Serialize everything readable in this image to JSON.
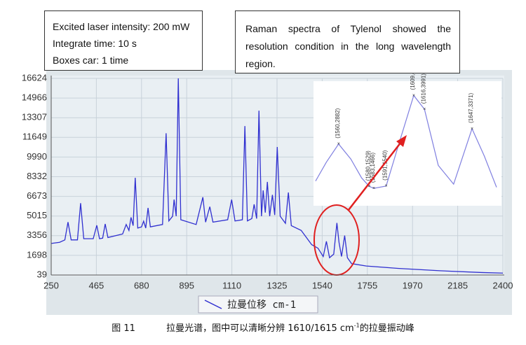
{
  "notes": [
    {
      "lines": [
        "Excited laser intensity: 200 mW",
        "Integrate time: 10 s",
        "Boxes car: 1 time"
      ]
    },
    {
      "lines": [
        "Raman spectra of Tylenol showed the",
        "resolution condition in the long wavelength",
        "region."
      ]
    }
  ],
  "caption": {
    "label": "图 11",
    "text_before": "拉曼光谱，图中可以清晰分辨 1610/1615 cm",
    "superscript": "-1",
    "text_after": "的拉曼振动峰"
  },
  "chart_data": [
    {
      "type": "line",
      "x": [
        250,
        290,
        315,
        330,
        345,
        375,
        390,
        405,
        450,
        467,
        480,
        495,
        507,
        520,
        590,
        607,
        620,
        630,
        640,
        650,
        662,
        680,
        690,
        700,
        711,
        722,
        780,
        797,
        810,
        828,
        835,
        845,
        855,
        867,
        940,
        972,
        985,
        1005,
        1020,
        1090,
        1109,
        1125,
        1160,
        1172,
        1184,
        1205,
        1216,
        1228,
        1239,
        1251,
        1259,
        1269,
        1279,
        1290,
        1303,
        1314,
        1326,
        1340,
        1365,
        1379,
        1393,
        1440,
        1490,
        1520,
        1545,
        1560,
        1575,
        1595,
        1610,
        1620,
        1632,
        1647,
        1660,
        1680,
        1750,
        1900,
        2100,
        2300,
        2400
      ],
      "series": [
        {
          "name": "拉曼位移 cm-1",
          "color": "#3030d0",
          "values": [
            2700,
            2800,
            3000,
            4500,
            3000,
            3000,
            6100,
            3100,
            3100,
            4230,
            3100,
            3150,
            4350,
            3200,
            3500,
            4300,
            3800,
            4900,
            4200,
            8240,
            4000,
            4100,
            4580,
            4000,
            5700,
            4100,
            4300,
            12000,
            4600,
            5000,
            6400,
            5000,
            16624,
            4700,
            4300,
            6600,
            4500,
            5800,
            4500,
            4700,
            6400,
            4600,
            4700,
            12600,
            4600,
            4800,
            6000,
            4800,
            13900,
            5000,
            7180,
            5300,
            7890,
            5000,
            6800,
            5100,
            10840,
            5000,
            4400,
            7000,
            4200,
            3800,
            2600,
            2300,
            1600,
            2882,
            1500,
            1800,
            4432,
            2800,
            1600,
            3371,
            1500,
            1000,
            800,
            600,
            400,
            250,
            200
          ]
        }
      ],
      "xlim": [
        250,
        2400
      ],
      "xticks": [
        250,
        465,
        680,
        895,
        1110,
        1325,
        1540,
        1755,
        1970,
        2185,
        2400
      ],
      "ylim": [
        39,
        16624
      ],
      "yticks": [
        39,
        1698,
        3356,
        5015,
        6673,
        8332,
        9990,
        11649,
        13307,
        14966,
        16624
      ],
      "grid": true
    },
    {
      "type": "line",
      "x": [
        1545,
        1552,
        1560,
        1568,
        1575,
        1580,
        1583,
        1591,
        1600,
        1609,
        1616,
        1625,
        1635,
        1647,
        1655,
        1663
      ],
      "values": [
        1700,
        2300,
        2882,
        2400,
        1800,
        1529,
        1466,
        1540,
        3000,
        4432,
        3991,
        2200,
        1600,
        3371,
        2500,
        1500
      ],
      "color": "#8080e0",
      "xlim": [
        1545,
        1663
      ],
      "ylim": [
        1000,
        4800
      ],
      "annotations": [
        {
          "text": "(1560,2882)",
          "x": 1560,
          "y": 2882
        },
        {
          "text": "(1580,1529)",
          "x": 1580,
          "y": 1529
        },
        {
          "text": "(1583,1466)",
          "x": 1583,
          "y": 1466
        },
        {
          "text": "(1591,1540)",
          "x": 1591,
          "y": 1540
        },
        {
          "text": "(1609,4432)",
          "x": 1609,
          "y": 4432
        },
        {
          "text": "(1616,3991)",
          "x": 1616,
          "y": 3991
        },
        {
          "text": "(1647,3371)",
          "x": 1647,
          "y": 3371
        }
      ]
    }
  ]
}
